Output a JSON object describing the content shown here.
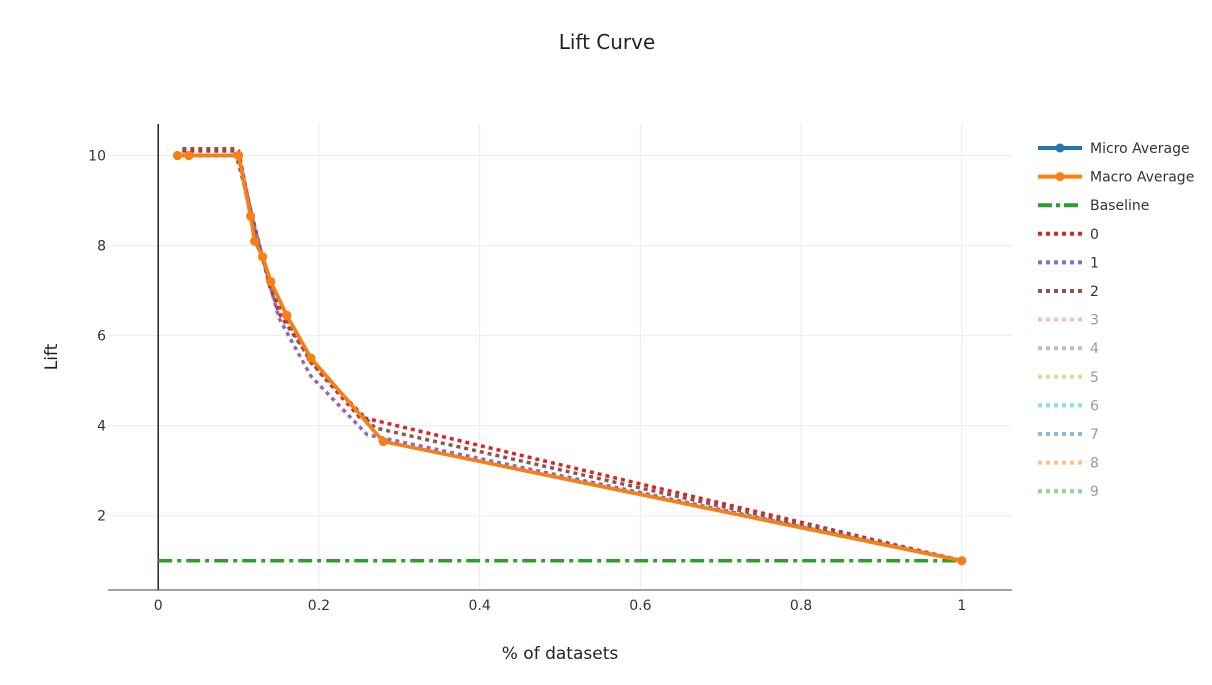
{
  "chart_data": {
    "type": "line",
    "title": "Lift Curve",
    "xlabel": "% of datasets",
    "ylabel": "Lift",
    "xlim": [
      -0.0625,
      1.0625
    ],
    "ylim": [
      0.35,
      10.7
    ],
    "x_ticks": [
      0,
      0.2,
      0.4,
      0.6,
      0.8,
      1
    ],
    "x_tick_labels": [
      "0",
      "0.2",
      "0.4",
      "0.6",
      "0.8",
      "1"
    ],
    "y_ticks": [
      2,
      4,
      6,
      8,
      10
    ],
    "y_tick_labels": [
      "2",
      "4",
      "6",
      "8",
      "10"
    ],
    "grid": true,
    "legend_position": "right",
    "series": [
      {
        "name": "Micro Average",
        "color": "#1f77b4",
        "dash": "solid",
        "markers": true,
        "visible": true,
        "x": [
          0.024,
          0.038,
          0.1,
          0.115,
          0.12,
          0.13,
          0.14,
          0.16,
          0.19,
          0.28,
          1.0
        ],
        "y": [
          10.0,
          10.0,
          10.0,
          8.65,
          8.1,
          7.75,
          7.2,
          6.45,
          5.5,
          3.65,
          1.0
        ]
      },
      {
        "name": "Macro Average",
        "color": "#ff7f0e",
        "dash": "solid",
        "markers": true,
        "visible": true,
        "x": [
          0.024,
          0.038,
          0.1,
          0.115,
          0.12,
          0.13,
          0.14,
          0.16,
          0.19,
          0.28,
          1.0
        ],
        "y": [
          10.0,
          10.0,
          10.0,
          8.65,
          8.1,
          7.75,
          7.2,
          6.45,
          5.5,
          3.65,
          1.0
        ]
      },
      {
        "name": "Baseline",
        "color": "#2ca02c",
        "dash": "dashdot",
        "markers": false,
        "visible": true,
        "x": [
          0,
          1
        ],
        "y": [
          1,
          1
        ]
      },
      {
        "name": "0",
        "color": "#d62728",
        "dash": "dot",
        "markers": false,
        "visible": true,
        "x": [
          0.03,
          0.1,
          0.12,
          0.15,
          0.2,
          0.25,
          1.0
        ],
        "y": [
          10.1,
          10.1,
          8.3,
          6.5,
          5.2,
          4.2,
          1.0
        ]
      },
      {
        "name": "1",
        "color": "#9467bd",
        "dash": "dot",
        "markers": false,
        "visible": true,
        "x": [
          0.03,
          0.1,
          0.12,
          0.15,
          0.19,
          0.26,
          1.0
        ],
        "y": [
          10.0,
          10.0,
          8.4,
          6.4,
          5.1,
          3.8,
          1.0
        ]
      },
      {
        "name": "2",
        "color": "#8c564b",
        "dash": "dot",
        "markers": false,
        "visible": true,
        "x": [
          0.03,
          0.095,
          0.115,
          0.14,
          0.19,
          0.27,
          1.0
        ],
        "y": [
          10.15,
          10.15,
          8.8,
          7.0,
          5.4,
          3.95,
          1.0
        ]
      },
      {
        "name": "3",
        "color": "#e377c2",
        "dash": "dot",
        "markers": false,
        "visible": false,
        "x": [],
        "y": []
      },
      {
        "name": "4",
        "color": "#7f7f7f",
        "dash": "dot",
        "markers": false,
        "visible": false,
        "x": [],
        "y": []
      },
      {
        "name": "5",
        "color": "#bcbd22",
        "dash": "dot",
        "markers": false,
        "visible": false,
        "x": [],
        "y": []
      },
      {
        "name": "6",
        "color": "#17becf",
        "dash": "dot",
        "markers": false,
        "visible": false,
        "x": [],
        "y": []
      },
      {
        "name": "7",
        "color": "#1f77b4",
        "dash": "dot",
        "markers": false,
        "visible": false,
        "x": [],
        "y": []
      },
      {
        "name": "8",
        "color": "#ff7f0e",
        "dash": "dot",
        "markers": false,
        "visible": false,
        "x": [],
        "y": []
      },
      {
        "name": "9",
        "color": "#2ca02c",
        "dash": "dot",
        "markers": false,
        "visible": false,
        "x": [],
        "y": []
      }
    ]
  }
}
